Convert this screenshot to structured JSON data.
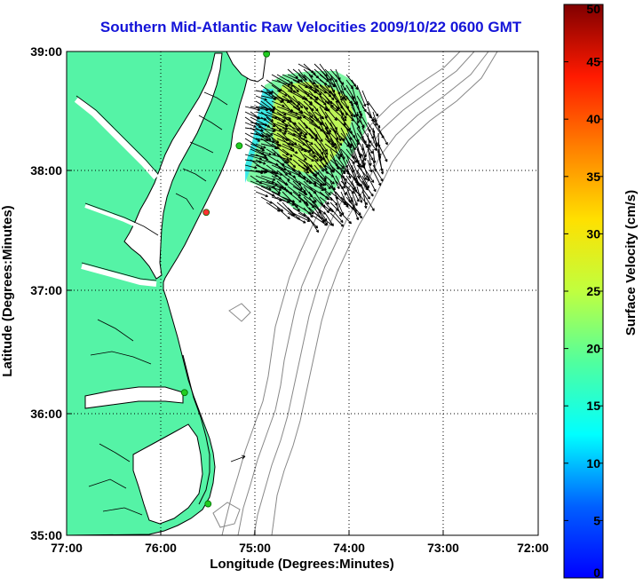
{
  "title": "Southern Mid-Atlantic Raw Velocities 2009/10/22 0600 GMT",
  "xlabel": "Longitude (Degrees:Minutes)",
  "ylabel": "Latitude (Degrees:Minutes)",
  "x_ticks": [
    "77:00",
    "76:00",
    "75:00",
    "74:00",
    "73:00",
    "72:00"
  ],
  "y_ticks": [
    "39:00",
    "38:00",
    "37:00",
    "36:00",
    "35:00"
  ],
  "colorbar": {
    "label": "Surface Velocity (cm/s)",
    "ticks": [
      "0",
      "5",
      "10",
      "15",
      "20",
      "25",
      "30",
      "35",
      "40",
      "45",
      "50"
    ],
    "min": 0,
    "max": 50
  },
  "colors": {
    "land": "#55f3a6",
    "coast": "#000000",
    "bathymetry": "#888888",
    "grid": "#000000",
    "station": "#22cc22",
    "station_alt": "#ff3030",
    "title": "#1414d8"
  },
  "chart_data": {
    "type": "scatter",
    "extent": {
      "lon": [
        -77,
        -72
      ],
      "lat": [
        35,
        39
      ]
    },
    "grid": true,
    "stations": [
      {
        "lon": -74.88,
        "lat": 38.98
      },
      {
        "lon": -75.17,
        "lat": 38.22
      },
      {
        "lon": -75.52,
        "lat": 37.67
      },
      {
        "lon": -75.75,
        "lat": 36.18
      },
      {
        "lon": -75.5,
        "lat": 35.26
      }
    ]
  }
}
